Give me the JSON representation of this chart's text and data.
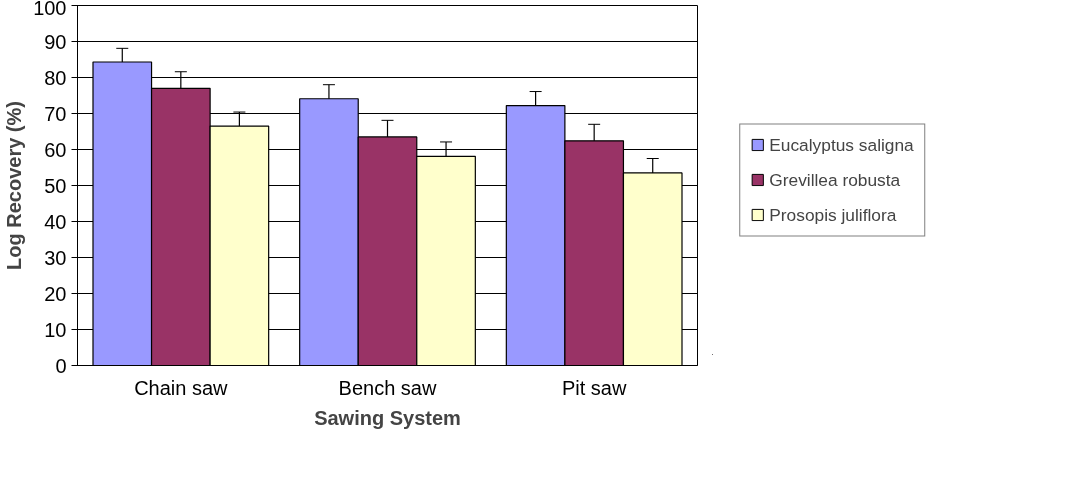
{
  "chart_data": {
    "type": "bar",
    "xlabel": "Sawing System",
    "ylabel": "Log Recovery (%)",
    "categories": [
      "Chain saw",
      "Bench saw",
      "Pit saw"
    ],
    "series": [
      {
        "name": "Eucalyptus saligna",
        "color": "#9999ff",
        "values": [
          84.3,
          74.1,
          72.2
        ],
        "errors": [
          3.8,
          3.9,
          3.9
        ]
      },
      {
        "name": "Grevillea robusta",
        "color": "#993366",
        "values": [
          77.0,
          63.5,
          62.4
        ],
        "errors": [
          4.6,
          4.6,
          4.6
        ]
      },
      {
        "name": "Prosopis juliflora",
        "color": "#ffffcc",
        "values": [
          66.5,
          58.1,
          53.5
        ],
        "errors": [
          3.9,
          4.0,
          4.0
        ]
      }
    ],
    "ylim": [
      0,
      100
    ],
    "yticks": [
      0,
      10,
      20,
      30,
      40,
      50,
      60,
      70,
      80,
      90,
      100
    ],
    "grid": "y",
    "legend": "right"
  }
}
